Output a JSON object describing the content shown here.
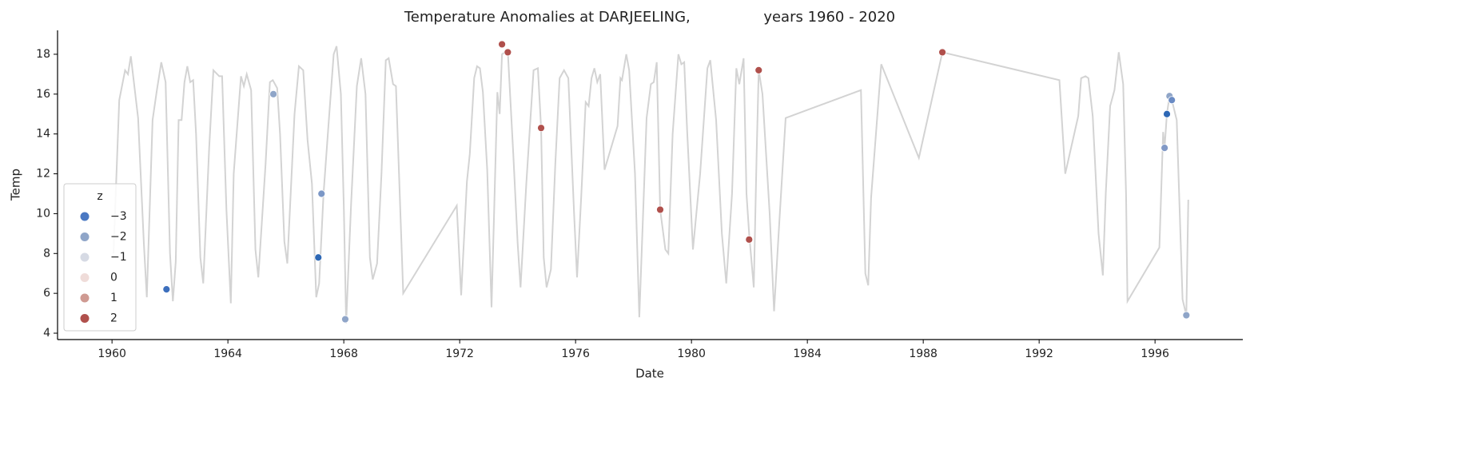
{
  "chart_data": {
    "type": "line",
    "title": "Temperature Anomalies at DARJEELING,                years 1960 - 2020",
    "x_label": "Date",
    "y_label": "Temp",
    "xlim": [
      1958.12,
      1999.03
    ],
    "ylim": [
      3.68,
      19.2
    ],
    "xticks": [
      1960,
      1964,
      1968,
      1972,
      1976,
      1980,
      1984,
      1988,
      1992,
      1996
    ],
    "yticks": [
      4,
      6,
      8,
      10,
      12,
      14,
      16,
      18
    ],
    "line": {
      "color": "#d3d3d3",
      "x": [
        1960.05,
        1960.25,
        1960.45,
        1960.55,
        1960.65,
        1960.9,
        1961.1,
        1961.2,
        1961.4,
        1961.55,
        1961.7,
        1961.85,
        1962.0,
        1962.1,
        1962.2,
        1962.3,
        1962.4,
        1962.5,
        1962.6,
        1962.7,
        1962.8,
        1962.9,
        1963.05,
        1963.15,
        1963.35,
        1963.5,
        1963.7,
        1963.8,
        1963.95,
        1964.1,
        1964.2,
        1964.45,
        1964.55,
        1964.65,
        1964.8,
        1964.95,
        1965.05,
        1965.3,
        1965.45,
        1965.55,
        1965.7,
        1965.8,
        1965.95,
        1966.05,
        1966.3,
        1966.45,
        1966.6,
        1966.75,
        1966.9,
        1967.05,
        1967.15,
        1967.3,
        1967.5,
        1967.65,
        1967.75,
        1967.9,
        1968.0,
        1968.08,
        1968.25,
        1968.45,
        1968.6,
        1968.75,
        1968.9,
        1969.0,
        1969.15,
        1969.3,
        1969.45,
        1969.55,
        1969.7,
        1969.8,
        1970.05,
        1971.9,
        1972.05,
        1972.25,
        1972.35,
        1972.5,
        1972.6,
        1972.7,
        1972.8,
        1972.95,
        1973.1,
        1973.3,
        1973.38,
        1973.46,
        1973.66,
        1973.85,
        1974.0,
        1974.1,
        1974.3,
        1974.55,
        1974.7,
        1974.81,
        1974.9,
        1975.0,
        1975.15,
        1975.3,
        1975.45,
        1975.6,
        1975.75,
        1975.95,
        1976.05,
        1976.2,
        1976.35,
        1976.45,
        1976.55,
        1976.65,
        1976.75,
        1976.85,
        1977.0,
        1977.45,
        1977.55,
        1977.6,
        1977.75,
        1977.85,
        1978.05,
        1978.2,
        1978.45,
        1978.6,
        1978.7,
        1978.8,
        1978.92,
        1979.1,
        1979.2,
        1979.35,
        1979.55,
        1979.65,
        1979.75,
        1979.85,
        1980.05,
        1980.3,
        1980.55,
        1980.65,
        1980.85,
        1981.05,
        1981.2,
        1981.4,
        1981.55,
        1981.65,
        1981.8,
        1981.9,
        1981.99,
        1982.15,
        1982.25,
        1982.32,
        1982.45,
        1982.7,
        1982.85,
        1983.05,
        1983.25,
        1985.85,
        1986.0,
        1986.1,
        1986.2,
        1986.55,
        1987.85,
        1988.66,
        1992.7,
        1992.9,
        1993.35,
        1993.45,
        1993.6,
        1993.7,
        1993.85,
        1994.05,
        1994.2,
        1994.3,
        1994.45,
        1994.6,
        1994.75,
        1994.9,
        1995.0,
        1995.05,
        1996.15,
        1996.28,
        1996.33,
        1996.41,
        1996.5,
        1996.58,
        1996.75,
        1996.95,
        1997.08,
        1997.15
      ],
      "values": [
        8.0,
        15.7,
        17.2,
        17.0,
        17.9,
        14.8,
        8.5,
        5.8,
        14.7,
        16.2,
        17.6,
        16.6,
        8.0,
        5.6,
        7.6,
        14.7,
        14.7,
        16.6,
        17.4,
        16.6,
        16.7,
        14.0,
        7.8,
        6.5,
        13.2,
        17.2,
        16.9,
        16.9,
        10.2,
        5.5,
        12.0,
        16.9,
        16.4,
        17.0,
        16.2,
        8.2,
        6.8,
        12.5,
        16.6,
        16.7,
        16.3,
        14.0,
        8.6,
        7.5,
        15.0,
        17.4,
        17.2,
        13.7,
        11.5,
        5.8,
        6.5,
        11.0,
        15.0,
        18.0,
        18.4,
        16.0,
        10.3,
        4.5,
        10.4,
        16.4,
        17.8,
        16.0,
        7.8,
        6.7,
        7.5,
        12.0,
        17.7,
        17.8,
        16.5,
        16.4,
        6.0,
        10.4,
        5.9,
        11.6,
        13.0,
        16.8,
        17.4,
        17.3,
        16.1,
        12.2,
        5.3,
        16.1,
        15.0,
        18.0,
        18.2,
        13.0,
        8.5,
        6.3,
        11.5,
        17.2,
        17.3,
        14.3,
        7.8,
        6.3,
        7.2,
        12.5,
        16.8,
        17.2,
        16.8,
        10.0,
        6.8,
        11.0,
        15.6,
        15.4,
        16.8,
        17.3,
        16.6,
        17.0,
        12.2,
        14.4,
        16.8,
        16.7,
        18.0,
        17.2,
        12.0,
        4.8,
        14.8,
        16.5,
        16.6,
        17.6,
        10.2,
        8.2,
        8.0,
        14.0,
        18.0,
        17.5,
        17.6,
        14.2,
        8.2,
        12.0,
        17.3,
        17.7,
        14.7,
        9.0,
        6.5,
        11.0,
        17.3,
        16.5,
        17.8,
        11.0,
        9.0,
        6.3,
        13.0,
        17.2,
        16.0,
        10.0,
        5.1,
        10.0,
        14.8,
        16.2,
        7.0,
        6.4,
        10.8,
        17.5,
        12.8,
        18.1,
        16.7,
        12.0,
        14.9,
        16.8,
        16.9,
        16.8,
        14.9,
        9.0,
        6.9,
        11.0,
        15.4,
        16.2,
        18.1,
        16.5,
        11.0,
        5.6,
        8.3,
        14.1,
        13.3,
        15.0,
        15.9,
        15.7,
        14.7,
        5.7,
        4.9,
        10.7
      ]
    },
    "points": {
      "x": [
        1961.88,
        1965.57,
        1967.12,
        1967.23,
        1968.05,
        1973.46,
        1973.66,
        1974.81,
        1978.92,
        1981.99,
        1982.32,
        1988.66,
        1996.33,
        1996.41,
        1996.5,
        1996.58,
        1997.08
      ],
      "values": [
        6.2,
        16.0,
        7.8,
        11.0,
        4.7,
        18.5,
        18.1,
        14.3,
        10.2,
        8.7,
        17.2,
        18.1,
        13.3,
        15.0,
        15.9,
        15.7,
        4.9
      ],
      "colors": [
        "#3d6fbd",
        "#8fa5c8",
        "#2e68b5",
        "#7b97c6",
        "#8fa5c8",
        "#b0504c",
        "#b0504c",
        "#b0504c",
        "#b0504c",
        "#b0504c",
        "#b0504c",
        "#b0504c",
        "#8199c6",
        "#2e68b5",
        "#8fa5c8",
        "#6a8bc4",
        "#8fa5c8"
      ]
    },
    "legend": {
      "title": "z",
      "levels": [
        {
          "value": -3,
          "label": "−3",
          "color": "#4a78c2"
        },
        {
          "value": -2,
          "label": "−2",
          "color": "#8fa5c8"
        },
        {
          "value": -1,
          "label": "−1",
          "color": "#d6dae4"
        },
        {
          "value": 0,
          "label": "0",
          "color": "#efdcd9"
        },
        {
          "value": 1,
          "label": "1",
          "color": "#cf9a92"
        },
        {
          "value": 2,
          "label": "2",
          "color": "#b0504c"
        }
      ]
    }
  }
}
